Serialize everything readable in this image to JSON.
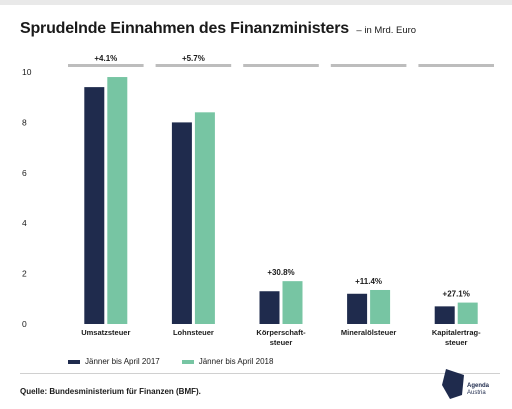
{
  "header": {
    "title": "Sprudelnde Einnahmen des Finanzministers",
    "subtitle": "– in Mrd. Euro"
  },
  "chart_data": {
    "type": "bar",
    "title": "Sprudelnde Einnahmen des Finanzministers",
    "subtitle": "– in Mrd. Euro",
    "xlabel": "",
    "ylabel": "",
    "ylim": [
      0,
      10
    ],
    "yticks": [
      "0",
      "2",
      "4",
      "6",
      "8",
      "10"
    ],
    "grid": false,
    "legend_position": "bottom",
    "categories": [
      "Umsatzsteuer",
      "Lohnsteuer",
      "Körperschaft-\nsteuer",
      "Mineralölsteuer",
      "Kapitalertrag-\nsteuer"
    ],
    "series": [
      {
        "name": "Jänner bis April 2017",
        "color": "#1f2b4d",
        "values": [
          9.4,
          8.0,
          1.3,
          1.2,
          0.7
        ]
      },
      {
        "name": "Jänner bis April 2018",
        "color": "#77c5a3",
        "values": [
          9.8,
          8.4,
          1.7,
          1.35,
          0.85
        ]
      }
    ],
    "annotations": [
      "+4.1%",
      "+5.7%",
      "+30.8%",
      "+11.4%",
      "+27.1%"
    ]
  },
  "legend": {
    "item1": "Jänner bis April 2017",
    "item2": "Jänner bis April 2018"
  },
  "footer": {
    "source": "Quelle: Bundesministerium für Finanzen (BMF).",
    "logo_text": "Agenda Austria"
  },
  "colors": {
    "series_2017": "#1f2b4d",
    "series_2018": "#77c5a3",
    "group_header_bar": "#bdbdbd"
  }
}
